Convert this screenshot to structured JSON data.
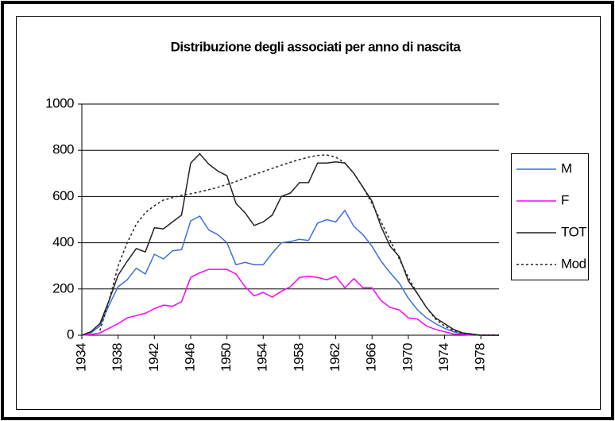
{
  "chart_data": {
    "type": "line",
    "title": "Distribuzione degli associati per anno di nascita",
    "x": [
      1934,
      1935,
      1936,
      1937,
      1938,
      1939,
      1940,
      1941,
      1942,
      1943,
      1944,
      1945,
      1946,
      1947,
      1948,
      1949,
      1950,
      1951,
      1952,
      1953,
      1954,
      1955,
      1956,
      1957,
      1958,
      1959,
      1960,
      1961,
      1962,
      1963,
      1964,
      1965,
      1966,
      1967,
      1968,
      1969,
      1970,
      1971,
      1972,
      1973,
      1974,
      1975,
      1976,
      1977,
      1978,
      1979,
      1980
    ],
    "xlim": [
      1934,
      1980
    ],
    "xticks": [
      1934,
      1938,
      1942,
      1946,
      1950,
      1954,
      1958,
      1962,
      1966,
      1970,
      1974,
      1978
    ],
    "ylim": [
      0,
      1000
    ],
    "yticks": [
      0,
      200,
      400,
      600,
      800,
      1000
    ],
    "grid": true,
    "legend": "right",
    "series": [
      {
        "name": "M",
        "color": "#3b6fe0",
        "style": "solid",
        "values": [
          0,
          10,
          40,
          130,
          210,
          240,
          290,
          265,
          350,
          330,
          365,
          370,
          495,
          515,
          455,
          435,
          400,
          305,
          315,
          305,
          305,
          355,
          400,
          405,
          415,
          410,
          485,
          500,
          490,
          540,
          470,
          435,
          385,
          320,
          270,
          225,
          160,
          110,
          75,
          50,
          30,
          15,
          5,
          2,
          0,
          0,
          0
        ]
      },
      {
        "name": "F",
        "color": "#ff00ff",
        "style": "solid",
        "values": [
          0,
          3,
          10,
          30,
          50,
          75,
          85,
          95,
          115,
          130,
          125,
          145,
          250,
          270,
          285,
          285,
          285,
          265,
          210,
          170,
          185,
          165,
          190,
          210,
          250,
          255,
          250,
          240,
          255,
          205,
          245,
          205,
          205,
          150,
          120,
          110,
          75,
          70,
          40,
          25,
          15,
          5,
          3,
          0,
          0,
          0,
          0
        ]
      },
      {
        "name": "TOT",
        "color": "#222222",
        "style": "solid",
        "values": [
          0,
          15,
          50,
          150,
          260,
          320,
          375,
          360,
          465,
          460,
          490,
          520,
          745,
          785,
          740,
          710,
          690,
          570,
          530,
          475,
          490,
          520,
          600,
          615,
          660,
          660,
          745,
          745,
          750,
          745,
          700,
          640,
          580,
          470,
          385,
          340,
          235,
          180,
          120,
          75,
          50,
          25,
          10,
          5,
          0,
          0,
          0
        ]
      },
      {
        "name": "Mod",
        "color": "#222222",
        "style": "dashed",
        "values": [
          null,
          null,
          20,
          150,
          300,
          400,
          480,
          530,
          560,
          585,
          595,
          605,
          612,
          620,
          630,
          640,
          652,
          665,
          680,
          695,
          708,
          722,
          735,
          748,
          760,
          770,
          778,
          780,
          770,
          745,
          700,
          640,
          570,
          490,
          410,
          330,
          250,
          180,
          120,
          70,
          40,
          20,
          8,
          3,
          0,
          0,
          0
        ]
      }
    ]
  }
}
